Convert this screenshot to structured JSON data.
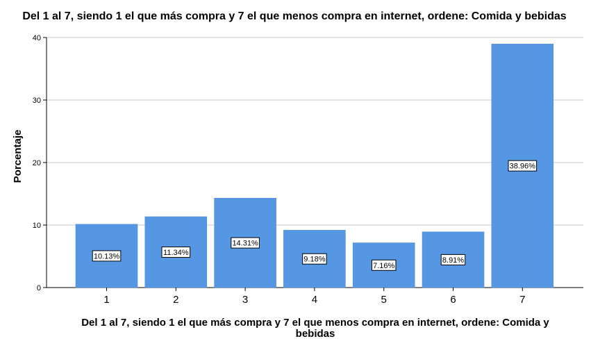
{
  "chart_data": {
    "type": "bar",
    "title": "Del 1 al 7, siendo 1 el que más compra y 7 el que menos compra en internet, ordene: Comida y bebidas",
    "xlabel_lines": [
      "Del 1 al 7, siendo 1 el que más compra y 7 el que menos compra en internet, ordene: Comida y",
      "bebidas"
    ],
    "ylabel": "Porcentaje",
    "categories": [
      "1",
      "2",
      "3",
      "4",
      "5",
      "6",
      "7"
    ],
    "values": [
      10.13,
      11.34,
      14.31,
      9.18,
      7.16,
      8.91,
      38.96
    ],
    "data_labels": [
      "10.13%",
      "11.34%",
      "14.31%",
      "9.18%",
      "7.16%",
      "8.91%",
      "38.96%"
    ],
    "ylim": [
      0,
      40
    ],
    "yticks": [
      0,
      10,
      20,
      30,
      40
    ],
    "grid": true,
    "legend": "none",
    "bar_color": "#5697e3",
    "grid_color": "#c8c8c8"
  }
}
